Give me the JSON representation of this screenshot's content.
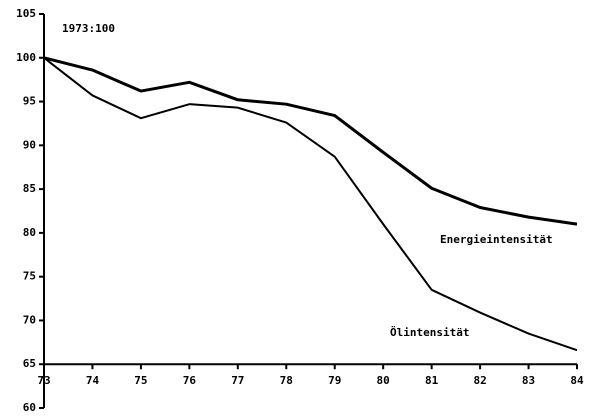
{
  "chart_data": {
    "type": "line",
    "annotation": "1973:100",
    "categories": [
      "73",
      "74",
      "75",
      "76",
      "77",
      "78",
      "79",
      "80",
      "81",
      "82",
      "83",
      "84"
    ],
    "series": [
      {
        "name": "Energieintensität",
        "color": "#000000",
        "width": 3,
        "values": [
          100,
          98.6,
          96.2,
          97.2,
          95.2,
          94.7,
          93.4,
          89.2,
          85.1,
          82.9,
          81.8,
          81.0
        ]
      },
      {
        "name": "Ölintensität",
        "color": "#000000",
        "width": 2,
        "values": [
          100,
          95.7,
          93.1,
          94.7,
          94.3,
          92.6,
          88.7,
          81.0,
          73.5,
          70.9,
          68.5,
          66.6
        ]
      }
    ],
    "ylim": [
      60,
      105
    ],
    "yticks": [
      60,
      65,
      70,
      75,
      80,
      85,
      90,
      95,
      100,
      105
    ],
    "xaxis_at": 65,
    "grid": false
  }
}
